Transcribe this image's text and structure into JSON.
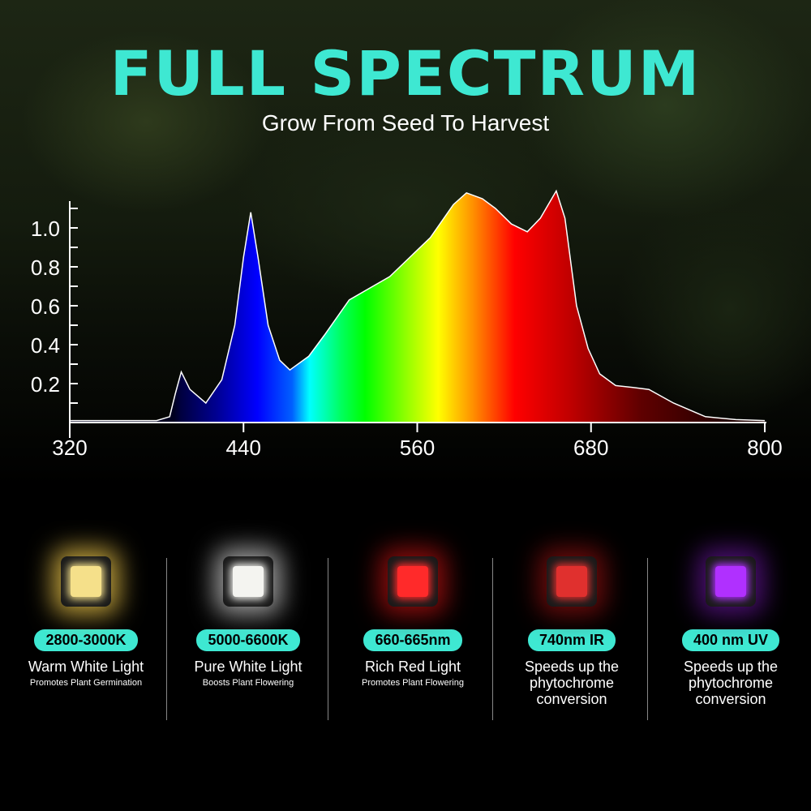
{
  "header": {
    "title": "FULL SPECTRUM",
    "subtitle": "Grow From Seed To Harvest"
  },
  "chart_data": {
    "type": "area",
    "title": "",
    "xlabel": "",
    "ylabel": "",
    "xlim": [
      320,
      800
    ],
    "ylim": [
      0,
      1.1
    ],
    "x_ticks": [
      320,
      440,
      560,
      680,
      800
    ],
    "y_ticks": [
      0.2,
      0.4,
      0.6,
      0.8,
      1.0
    ],
    "y_tick_labels": [
      "0.2",
      "0.4",
      "0.6",
      "0.8",
      "1.0"
    ],
    "fill": "wavelength-colored gradient",
    "grid": false,
    "series": [
      {
        "x": [
          320,
          340,
          360,
          380,
          389,
          393,
          397,
          403,
          414,
          425,
          434,
          440,
          445,
          450,
          457,
          465,
          472,
          485,
          496,
          513,
          541,
          569,
          585,
          594,
          605,
          614,
          625,
          636,
          645,
          656,
          662,
          670,
          678,
          686,
          697,
          709,
          720,
          737,
          759,
          780,
          800
        ],
        "y": [
          0.01,
          0.01,
          0.01,
          0.01,
          0.03,
          0.15,
          0.26,
          0.17,
          0.1,
          0.22,
          0.5,
          0.85,
          1.08,
          0.85,
          0.5,
          0.32,
          0.27,
          0.34,
          0.45,
          0.63,
          0.75,
          0.95,
          1.12,
          1.18,
          1.15,
          1.1,
          1.02,
          0.98,
          1.05,
          1.19,
          1.05,
          0.6,
          0.38,
          0.25,
          0.19,
          0.18,
          0.17,
          0.1,
          0.03,
          0.015,
          0.01
        ]
      }
    ]
  },
  "leds": [
    {
      "badge": "2800-3000K",
      "title": "Warm White Light",
      "desc": "Promotes Plant Germination",
      "color": "#f5e08a",
      "glow": "#b89a3a"
    },
    {
      "badge": "5000-6600K",
      "title": "Pure White Light",
      "desc": "Boosts Plant Flowering",
      "color": "#f4f4f0",
      "glow": "#9a9a9a"
    },
    {
      "badge": "660-665nm",
      "title": "Rich Red Light",
      "desc": "Promotes Plant Flowering",
      "color": "#ff2a2a",
      "glow": "#8a0d0d"
    },
    {
      "badge": "740nm IR",
      "title": "Speeds up the phytochrome conversion",
      "desc": "",
      "color": "#e0302e",
      "glow": "#6a0c0c"
    },
    {
      "badge": "400 nm UV",
      "title": "Speeds up the phytochrome conversion",
      "desc": "",
      "color": "#b030ff",
      "glow": "#4a1070"
    }
  ],
  "colors": {
    "accent": "#3ee8d2"
  }
}
